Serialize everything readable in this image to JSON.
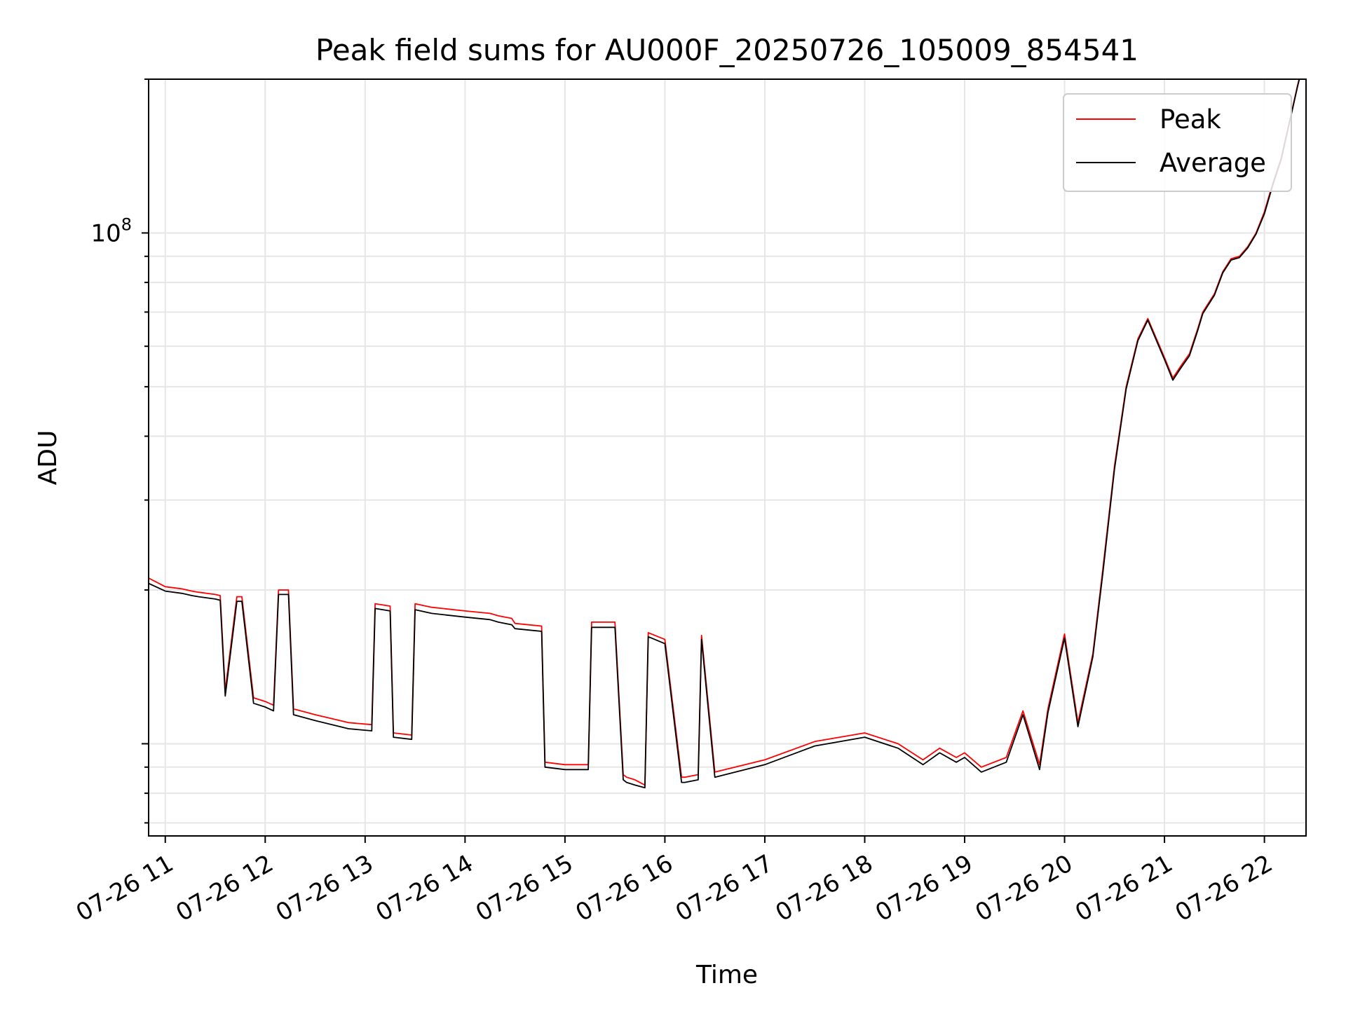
{
  "chart_data": {
    "type": "line",
    "title": "Peak field sums for AU000F_20250726_105009_854541",
    "xlabel": "Time",
    "ylabel": "ADU",
    "y_scale": "log",
    "y_tick_labels": [
      {
        "base": "10",
        "exp": "8",
        "value": 100000000
      }
    ],
    "ylim": [
      6600000,
      200000000
    ],
    "xlim": [
      "2025-07-26 10:50",
      "2025-07-26 22:25"
    ],
    "x_tick_labels": [
      "07-26 11",
      "07-26 12",
      "07-26 13",
      "07-26 14",
      "07-26 15",
      "07-26 16",
      "07-26 17",
      "07-26 18",
      "07-26 19",
      "07-26 20",
      "07-26 21",
      "07-26 22"
    ],
    "grid": true,
    "legend_position": "top-right",
    "series": [
      {
        "name": "Peak",
        "color": "#ff0000",
        "x": [
          "2025-07-26 10:50",
          "2025-07-26 11:00",
          "2025-07-26 11:10",
          "2025-07-26 11:16",
          "2025-07-26 11:20",
          "2025-07-26 11:30",
          "2025-07-26 11:33",
          "2025-07-26 11:36",
          "2025-07-26 11:43",
          "2025-07-26 11:46",
          "2025-07-26 11:53",
          "2025-07-26 12:00",
          "2025-07-26 12:05",
          "2025-07-26 12:08",
          "2025-07-26 12:14",
          "2025-07-26 12:17",
          "2025-07-26 12:30",
          "2025-07-26 12:50",
          "2025-07-26 13:04",
          "2025-07-26 13:06",
          "2025-07-26 13:15",
          "2025-07-26 13:17",
          "2025-07-26 13:28",
          "2025-07-26 13:30",
          "2025-07-26 13:40",
          "2025-07-26 14:00",
          "2025-07-26 14:15",
          "2025-07-26 14:20",
          "2025-07-26 14:28",
          "2025-07-26 14:30",
          "2025-07-26 14:46",
          "2025-07-26 14:48",
          "2025-07-26 15:00",
          "2025-07-26 15:14",
          "2025-07-26 15:16",
          "2025-07-26 15:30",
          "2025-07-26 15:35",
          "2025-07-26 15:37",
          "2025-07-26 15:42",
          "2025-07-26 15:48",
          "2025-07-26 15:50",
          "2025-07-26 16:00",
          "2025-07-26 16:10",
          "2025-07-26 16:12",
          "2025-07-26 16:20",
          "2025-07-26 16:22",
          "2025-07-26 16:30",
          "2025-07-26 17:00",
          "2025-07-26 17:30",
          "2025-07-26 18:00",
          "2025-07-26 18:20",
          "2025-07-26 18:35",
          "2025-07-26 18:45",
          "2025-07-26 18:55",
          "2025-07-26 19:00",
          "2025-07-26 19:10",
          "2025-07-26 19:25",
          "2025-07-26 19:35",
          "2025-07-26 19:45",
          "2025-07-26 19:50",
          "2025-07-26 20:00",
          "2025-07-26 20:08",
          "2025-07-26 20:17",
          "2025-07-26 20:23",
          "2025-07-26 20:30",
          "2025-07-26 20:37",
          "2025-07-26 20:44",
          "2025-07-26 20:50",
          "2025-07-26 21:00",
          "2025-07-26 21:05",
          "2025-07-26 21:10",
          "2025-07-26 21:15",
          "2025-07-26 21:20",
          "2025-07-26 21:23",
          "2025-07-26 21:30",
          "2025-07-26 21:35",
          "2025-07-26 21:40",
          "2025-07-26 21:45",
          "2025-07-26 21:50",
          "2025-07-26 21:55",
          "2025-07-26 22:00",
          "2025-07-26 22:05",
          "2025-07-26 22:10",
          "2025-07-26 22:15",
          "2025-07-26 22:20",
          "2025-07-26 22:24"
        ],
        "values": [
          21100000,
          20300000,
          20100000,
          19900000,
          19800000,
          19600000,
          19500000,
          12700000,
          19400000,
          19400000,
          12300000,
          12100000,
          11900000,
          20000000,
          20000000,
          11700000,
          11400000,
          11000000,
          10900000,
          18800000,
          18600000,
          10500000,
          10400000,
          18800000,
          18500000,
          18200000,
          18000000,
          17800000,
          17600000,
          17200000,
          17000000,
          9200000,
          9100000,
          9100000,
          17300000,
          17300000,
          8700000,
          8600000,
          8500000,
          8300000,
          16500000,
          16000000,
          8600000,
          8600000,
          8700000,
          16300000,
          8800000,
          9300000,
          10100000,
          10500000,
          10000000,
          9300000,
          9800000,
          9400000,
          9600000,
          9000000,
          9400000,
          11600000,
          9100000,
          11700000,
          16400000,
          11000000,
          15000000,
          22000000,
          35000000,
          50000000,
          62000000,
          68000000,
          57000000,
          52000000,
          55000000,
          58000000,
          65000000,
          70000000,
          76000000,
          84000000,
          89000000,
          90000000,
          94000000,
          100000000,
          110000000,
          125000000,
          140000000,
          165000000,
          195000000,
          220000000
        ]
      },
      {
        "name": "Average",
        "color": "#000000",
        "x": [
          "2025-07-26 10:50",
          "2025-07-26 11:00",
          "2025-07-26 11:10",
          "2025-07-26 11:16",
          "2025-07-26 11:20",
          "2025-07-26 11:30",
          "2025-07-26 11:33",
          "2025-07-26 11:36",
          "2025-07-26 11:43",
          "2025-07-26 11:46",
          "2025-07-26 11:53",
          "2025-07-26 12:00",
          "2025-07-26 12:05",
          "2025-07-26 12:08",
          "2025-07-26 12:14",
          "2025-07-26 12:17",
          "2025-07-26 12:30",
          "2025-07-26 12:50",
          "2025-07-26 13:04",
          "2025-07-26 13:06",
          "2025-07-26 13:15",
          "2025-07-26 13:17",
          "2025-07-26 13:28",
          "2025-07-26 13:30",
          "2025-07-26 13:40",
          "2025-07-26 14:00",
          "2025-07-26 14:15",
          "2025-07-26 14:20",
          "2025-07-26 14:28",
          "2025-07-26 14:30",
          "2025-07-26 14:46",
          "2025-07-26 14:48",
          "2025-07-26 15:00",
          "2025-07-26 15:14",
          "2025-07-26 15:16",
          "2025-07-26 15:30",
          "2025-07-26 15:35",
          "2025-07-26 15:37",
          "2025-07-26 15:42",
          "2025-07-26 15:48",
          "2025-07-26 15:50",
          "2025-07-26 16:00",
          "2025-07-26 16:10",
          "2025-07-26 16:12",
          "2025-07-26 16:20",
          "2025-07-26 16:22",
          "2025-07-26 16:30",
          "2025-07-26 17:00",
          "2025-07-26 17:30",
          "2025-07-26 18:00",
          "2025-07-26 18:20",
          "2025-07-26 18:35",
          "2025-07-26 18:45",
          "2025-07-26 18:55",
          "2025-07-26 19:00",
          "2025-07-26 19:10",
          "2025-07-26 19:25",
          "2025-07-26 19:35",
          "2025-07-26 19:45",
          "2025-07-26 19:50",
          "2025-07-26 20:00",
          "2025-07-26 20:08",
          "2025-07-26 20:17",
          "2025-07-26 20:23",
          "2025-07-26 20:30",
          "2025-07-26 20:37",
          "2025-07-26 20:44",
          "2025-07-26 20:50",
          "2025-07-26 21:00",
          "2025-07-26 21:05",
          "2025-07-26 21:10",
          "2025-07-26 21:15",
          "2025-07-26 21:20",
          "2025-07-26 21:23",
          "2025-07-26 21:30",
          "2025-07-26 21:35",
          "2025-07-26 21:40",
          "2025-07-26 21:45",
          "2025-07-26 21:50",
          "2025-07-26 21:55",
          "2025-07-26 22:00",
          "2025-07-26 22:05",
          "2025-07-26 22:10",
          "2025-07-26 22:15",
          "2025-07-26 22:20",
          "2025-07-26 22:24"
        ],
        "values": [
          20600000,
          19900000,
          19700000,
          19500000,
          19400000,
          19200000,
          19100000,
          12400000,
          19000000,
          19000000,
          12000000,
          11800000,
          11600000,
          19600000,
          19600000,
          11400000,
          11100000,
          10700000,
          10600000,
          18400000,
          18200000,
          10300000,
          10200000,
          18300000,
          18000000,
          17700000,
          17500000,
          17300000,
          17100000,
          16800000,
          16600000,
          9000000,
          8900000,
          8900000,
          16900000,
          16900000,
          8500000,
          8400000,
          8300000,
          8200000,
          16200000,
          15700000,
          8400000,
          8400000,
          8500000,
          16000000,
          8600000,
          9100000,
          9900000,
          10300000,
          9800000,
          9100000,
          9600000,
          9200000,
          9400000,
          8800000,
          9200000,
          11400000,
          8900000,
          11500000,
          16100000,
          10800000,
          14800000,
          21600000,
          34500000,
          49500000,
          61500000,
          67500000,
          56500000,
          51500000,
          54500000,
          57500000,
          64500000,
          69500000,
          75500000,
          83500000,
          88500000,
          89500000,
          93500000,
          99500000,
          109000000,
          124000000,
          139000000,
          164000000,
          194000000,
          219000000
        ]
      }
    ]
  }
}
